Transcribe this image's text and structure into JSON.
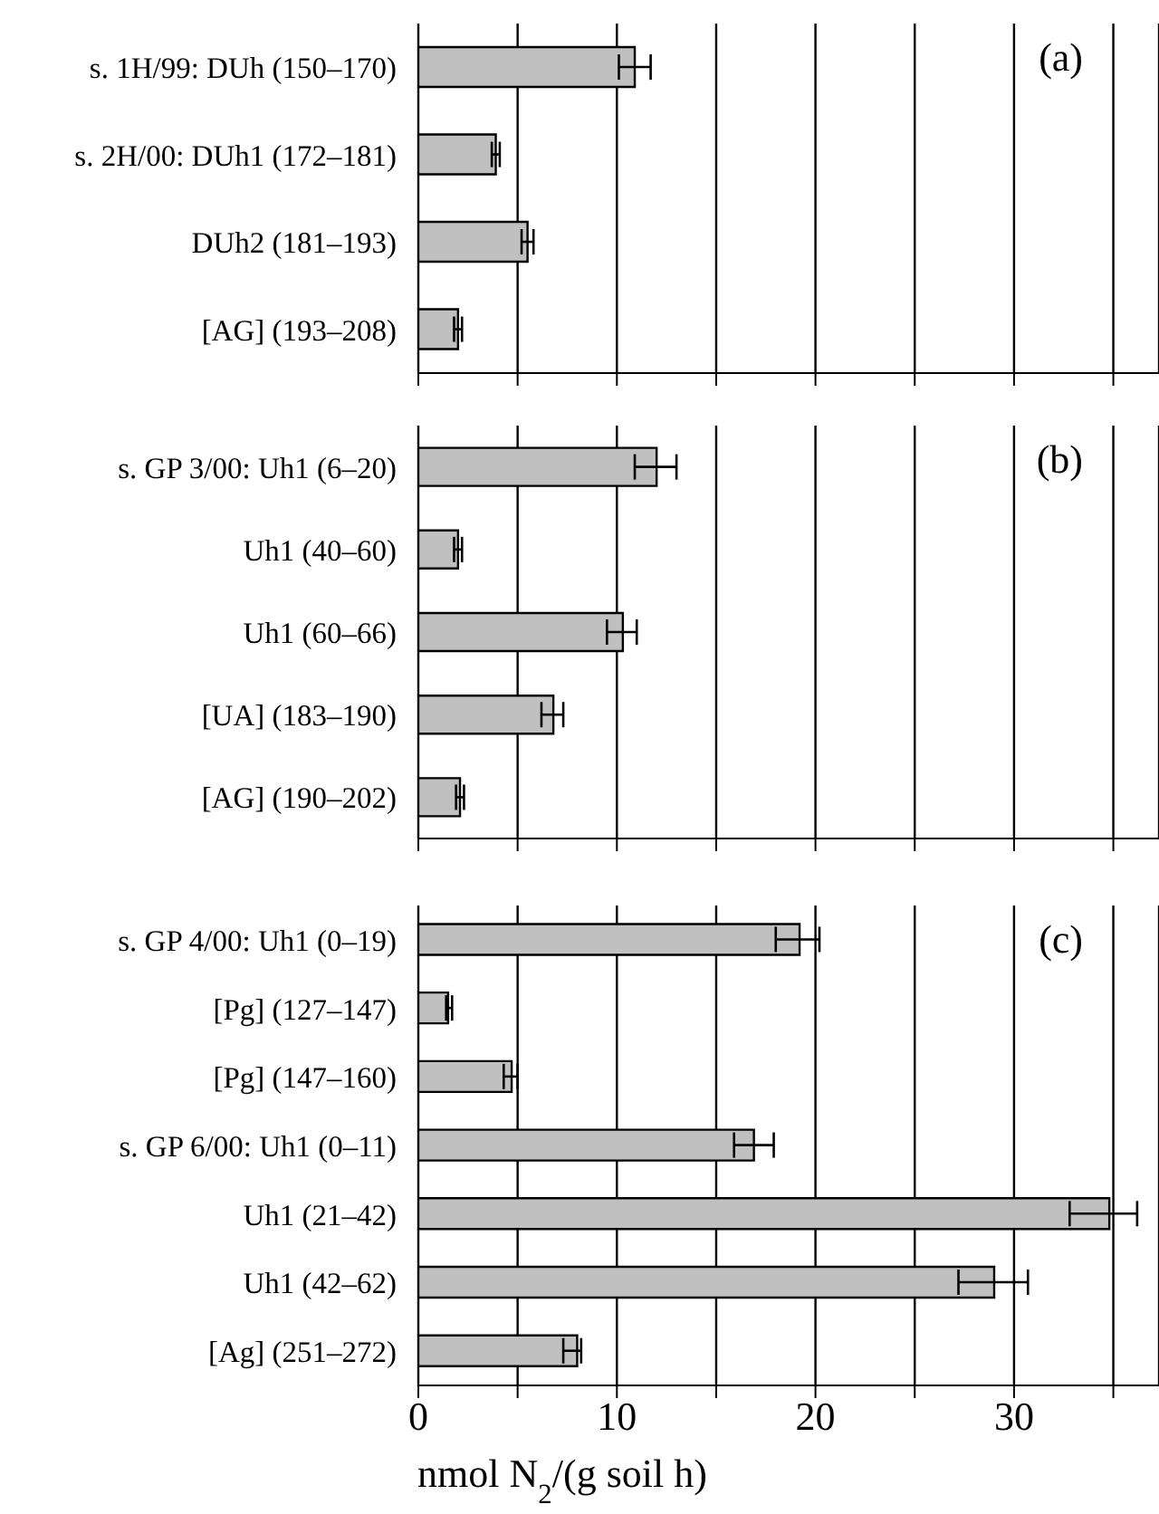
{
  "chart_data": [
    {
      "type": "bar",
      "orientation": "horizontal",
      "categories": [
        "s. 1H/99: DUh (150–170)",
        "s. 2H/00: DUh1 (172–181)",
        "DUh2 (181–193)",
        "[AG] (193–208)"
      ],
      "values": [
        10.9,
        3.9,
        5.5,
        2.0
      ],
      "errors": [
        [
          10.1,
          11.7
        ],
        [
          3.7,
          4.1
        ],
        [
          5.2,
          5.8
        ],
        [
          1.8,
          2.2
        ]
      ],
      "color": "#c0c0c0",
      "xlim": [
        0,
        37.3
      ],
      "xticks": [
        0,
        {
          "value": 5,
          "label": null
        },
        10,
        {
          "value": 15,
          "label": null
        },
        20,
        {
          "value": 25,
          "label": null
        },
        30,
        {
          "value": 35,
          "label": null
        }
      ],
      "grid": "x",
      "tick_labels": "y",
      "annotations": [
        "(a)"
      ]
    },
    {
      "type": "bar",
      "orientation": "horizontal",
      "categories": [
        "s. GP 3/00: Uh1 (6–20)",
        "Uh1 (40–60)",
        "Uh1 (60–66)",
        "[UA] (183–190)",
        "[AG] (190–202)"
      ],
      "values": [
        12.0,
        2.0,
        10.3,
        6.8,
        2.1
      ],
      "errors": [
        [
          10.9,
          13.0
        ],
        [
          1.8,
          2.2
        ],
        [
          9.5,
          11.0
        ],
        [
          6.2,
          7.3
        ],
        [
          1.9,
          2.3
        ]
      ],
      "color": "#c0c0c0",
      "xlim": [
        0,
        37.3
      ],
      "xticks": [
        0,
        {
          "value": 5,
          "label": null
        },
        10,
        {
          "value": 15,
          "label": null
        },
        20,
        {
          "value": 25,
          "label": null
        },
        30,
        {
          "value": 35,
          "label": null
        }
      ],
      "grid": "x",
      "tick_labels": "y",
      "annotations": [
        "(b)"
      ]
    },
    {
      "type": "bar",
      "orientation": "horizontal",
      "categories": [
        "s. GP 4/00: Uh1 (0–19)",
        "[Pg] (127–147)",
        "[Pg] (147–160)",
        "s. GP 6/00: Uh1 (0–11)",
        "Uh1 (21–42)",
        "Uh1 (42–62)",
        "[Ag] (251–272)"
      ],
      "values": [
        19.2,
        1.5,
        4.7,
        16.9,
        34.8,
        29.0,
        8.0
      ],
      "errors": [
        [
          18.0,
          20.2
        ],
        [
          1.4,
          1.7
        ],
        [
          4.3,
          5.0
        ],
        [
          15.9,
          17.9
        ],
        [
          32.8,
          36.2
        ],
        [
          27.2,
          30.7
        ],
        [
          7.3,
          8.2
        ]
      ],
      "color": "#c0c0c0",
      "xlim": [
        0,
        37.3
      ],
      "xticks": [
        0,
        {
          "value": 5,
          "label": null
        },
        10,
        {
          "value": 15,
          "label": null
        },
        20,
        {
          "value": 25,
          "label": null
        },
        30,
        {
          "value": 35,
          "label": null
        }
      ],
      "grid": "x",
      "xlabel": "nmol N$_{2}$/(g  soil h)",
      "annotations": [
        "(c)"
      ]
    }
  ]
}
